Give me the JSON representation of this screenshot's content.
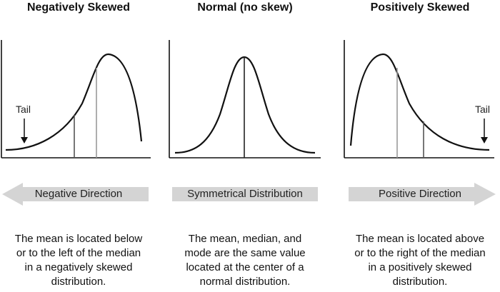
{
  "panels": [
    {
      "id": "negative",
      "title": "Negatively Skewed",
      "tail_label": "Tail",
      "direction_label": "Negative Direction",
      "description_lines": [
        "The mean is located below",
        "or to the left of the median",
        "in a negatively skewed",
        "distribution."
      ]
    },
    {
      "id": "normal",
      "title": "Normal (no skew)",
      "direction_label": "Symmetrical Distribution",
      "description_lines": [
        "The mean, median, and",
        "mode are the same value",
        "located at the center of a",
        "normal distribution."
      ]
    },
    {
      "id": "positive",
      "title": "Positively Skewed",
      "tail_label": "Tail",
      "direction_label": "Positive Direction",
      "description_lines": [
        "The mean is located above",
        "or to the right of the median",
        "in a positively skewed",
        "distribution."
      ]
    }
  ],
  "colors": {
    "curve": "#111111",
    "mean_line": "#555555",
    "median_line": "#999999",
    "arrow_fill": "#d4d4d4"
  }
}
